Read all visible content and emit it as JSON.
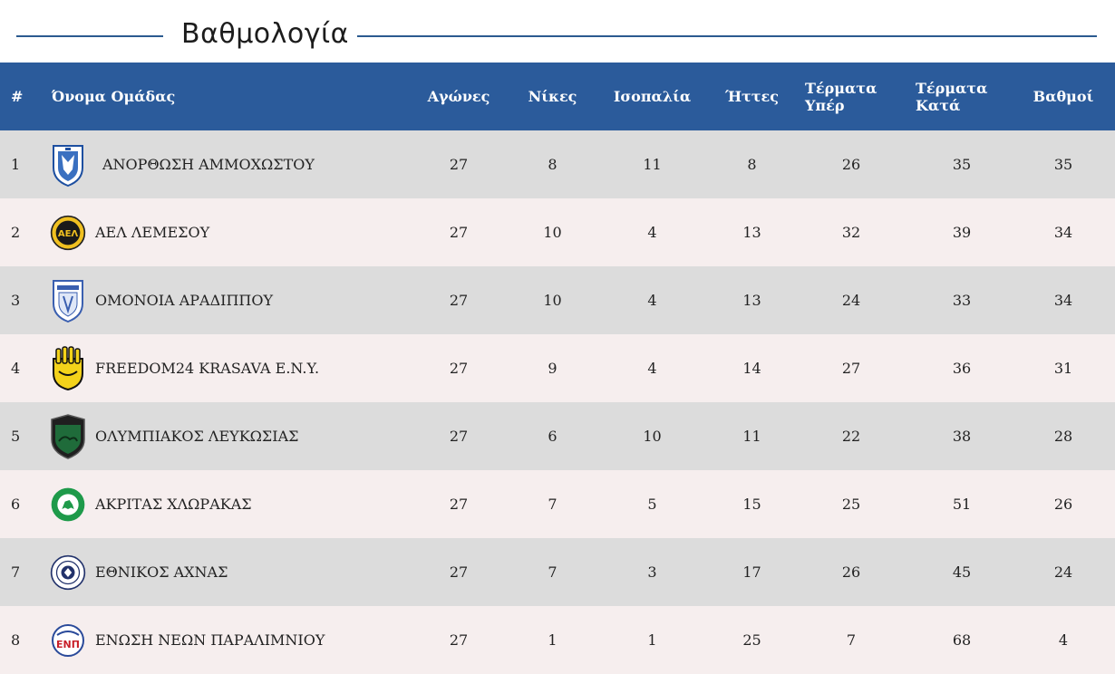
{
  "title": "Βαθμολογία",
  "headers": {
    "rank": "#",
    "team": "Όνομα Ομάδας",
    "played": "Αγώνες",
    "wins": "Νίκες",
    "draws": "Ισοπαλία",
    "losses": "Ήττες",
    "goals_for_1": "Τέρματα",
    "goals_for_2": "Υπέρ",
    "goals_against_1": "Τέρματα",
    "goals_against_2": "Κατά",
    "points": "Βαθμοί"
  },
  "rows": [
    {
      "rank": "1",
      "team": "ΑΝΟΡΘΩΣΗ ΑΜΜΟΧΩΣΤΟΥ",
      "crest": "anorthosis-crest",
      "played": "27",
      "wins": "8",
      "draws": "11",
      "losses": "8",
      "gf": "26",
      "ga": "35",
      "pts": "35"
    },
    {
      "rank": "2",
      "team": "ΑΕΛ ΛΕΜΕΣΟΥ",
      "crest": "ael-crest",
      "played": "27",
      "wins": "10",
      "draws": "4",
      "losses": "13",
      "gf": "32",
      "ga": "39",
      "pts": "34"
    },
    {
      "rank": "3",
      "team": "ΟΜΟΝΟΙΑ ΑΡΑΔΙΠΠΟΥ",
      "crest": "omonia-aradippou-crest",
      "played": "27",
      "wins": "10",
      "draws": "4",
      "losses": "13",
      "gf": "24",
      "ga": "33",
      "pts": "34"
    },
    {
      "rank": "4",
      "team": "FREEDOM24 KRASAVA E.N.Y.",
      "crest": "krasava-crest",
      "played": "27",
      "wins": "9",
      "draws": "4",
      "losses": "14",
      "gf": "27",
      "ga": "36",
      "pts": "31"
    },
    {
      "rank": "5",
      "team": "ΟΛΥΜΠΙΑΚΟΣ ΛΕΥΚΩΣΙΑΣ",
      "crest": "olympiakos-crest",
      "played": "27",
      "wins": "6",
      "draws": "10",
      "losses": "11",
      "gf": "22",
      "ga": "38",
      "pts": "28"
    },
    {
      "rank": "6",
      "team": "ΑΚΡΙΤΑΣ ΧΛΩΡΑΚΑΣ",
      "crest": "akritas-crest",
      "played": "27",
      "wins": "7",
      "draws": "5",
      "losses": "15",
      "gf": "25",
      "ga": "51",
      "pts": "26"
    },
    {
      "rank": "7",
      "team": "ΕΘΝΙΚΟΣ ΑΧΝΑΣ",
      "crest": "ethnikos-crest",
      "played": "27",
      "wins": "7",
      "draws": "3",
      "losses": "17",
      "gf": "26",
      "ga": "45",
      "pts": "24"
    },
    {
      "rank": "8",
      "team": "ΕΝΩΣΗ ΝΕΩΝ ΠΑΡΑΛΙΜΝΙΟΥ",
      "crest": "enp-crest",
      "played": "27",
      "wins": "1",
      "draws": "1",
      "losses": "25",
      "gf": "7",
      "ga": "68",
      "pts": "4"
    }
  ],
  "colors": {
    "header_bg": "#2b5b9b",
    "row_odd": "#dcdcdc",
    "row_even": "#f6eeee",
    "accent_line": "#2b5a8f"
  }
}
